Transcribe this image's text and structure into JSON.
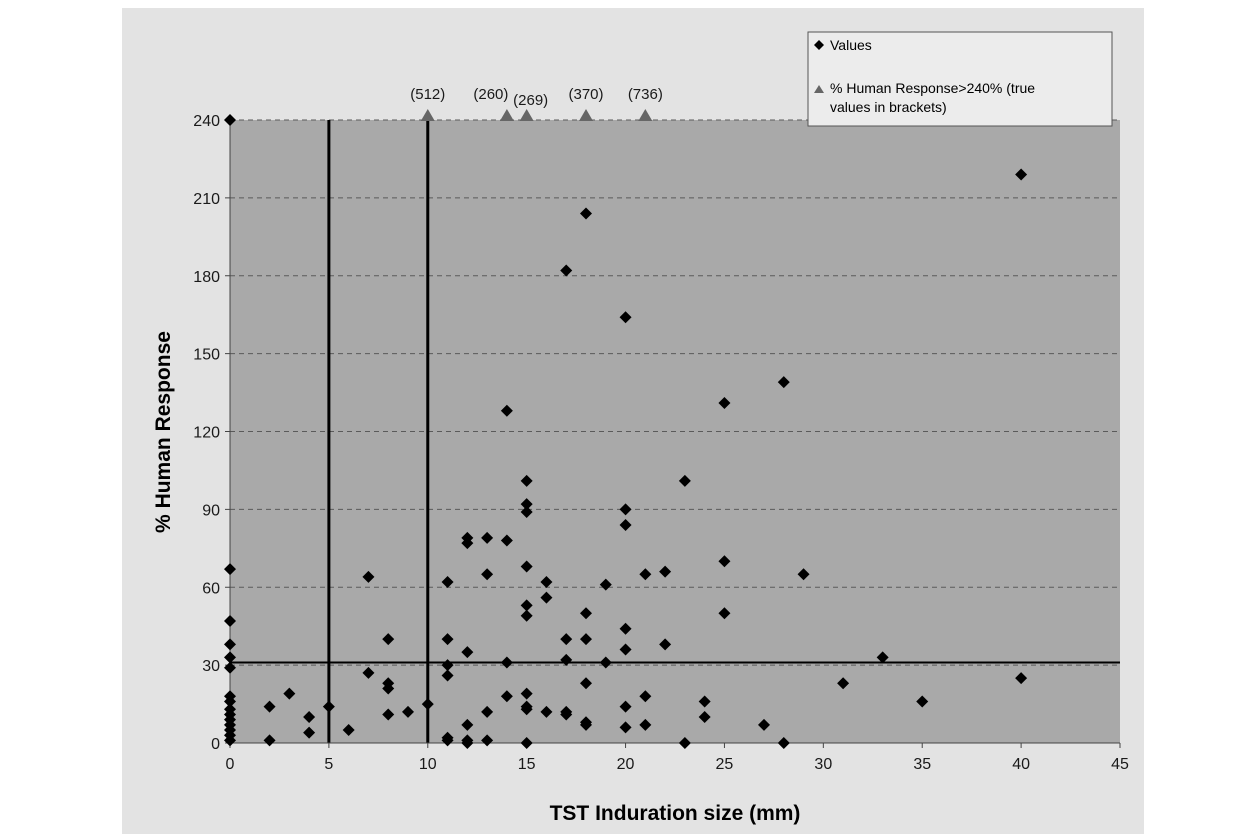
{
  "chart_data": {
    "type": "scatter",
    "xlabel": "TST Induration size (mm)",
    "ylabel": "% Human Response",
    "xlim": [
      0,
      45
    ],
    "ylim": [
      0,
      240
    ],
    "xticks": [
      0,
      5,
      10,
      15,
      20,
      25,
      30,
      35,
      40,
      45
    ],
    "yticks": [
      0,
      30,
      60,
      90,
      120,
      150,
      180,
      210,
      240
    ],
    "grid": "horizontal dashed",
    "legend_position": "top-right",
    "plot_background": "#a9a9a9",
    "reference_lines": {
      "vertical_x": [
        5,
        10
      ],
      "horizontal_y": [
        31
      ]
    },
    "series": [
      {
        "name": "Values",
        "marker": "diamond",
        "color": "#000000",
        "points": [
          [
            0,
            240
          ],
          [
            0,
            67
          ],
          [
            0,
            47
          ],
          [
            0,
            38
          ],
          [
            0,
            33
          ],
          [
            0,
            29
          ],
          [
            0,
            18
          ],
          [
            0,
            16
          ],
          [
            0,
            13
          ],
          [
            0,
            11
          ],
          [
            0,
            9
          ],
          [
            0,
            7
          ],
          [
            0,
            5
          ],
          [
            0,
            3
          ],
          [
            0,
            1
          ],
          [
            2,
            14
          ],
          [
            2,
            1
          ],
          [
            3,
            19
          ],
          [
            4,
            10
          ],
          [
            4,
            4
          ],
          [
            5,
            14
          ],
          [
            6,
            5
          ],
          [
            7,
            64
          ],
          [
            7,
            27
          ],
          [
            8,
            40
          ],
          [
            8,
            23
          ],
          [
            8,
            21
          ],
          [
            8,
            11
          ],
          [
            9,
            12
          ],
          [
            10,
            15
          ],
          [
            11,
            62
          ],
          [
            11,
            40
          ],
          [
            11,
            30
          ],
          [
            11,
            26
          ],
          [
            11,
            2
          ],
          [
            11,
            1
          ],
          [
            12,
            79
          ],
          [
            12,
            77
          ],
          [
            12,
            35
          ],
          [
            12,
            7
          ],
          [
            12,
            1
          ],
          [
            12,
            0
          ],
          [
            13,
            79
          ],
          [
            13,
            65
          ],
          [
            13,
            12
          ],
          [
            13,
            1
          ],
          [
            14,
            128
          ],
          [
            14,
            78
          ],
          [
            14,
            31
          ],
          [
            14,
            18
          ],
          [
            15,
            101
          ],
          [
            15,
            92
          ],
          [
            15,
            89
          ],
          [
            15,
            68
          ],
          [
            15,
            53
          ],
          [
            15,
            49
          ],
          [
            15,
            19
          ],
          [
            15,
            14
          ],
          [
            15,
            13
          ],
          [
            15,
            0
          ],
          [
            16,
            62
          ],
          [
            16,
            56
          ],
          [
            16,
            12
          ],
          [
            17,
            182
          ],
          [
            17,
            40
          ],
          [
            17,
            32
          ],
          [
            17,
            12
          ],
          [
            17,
            11
          ],
          [
            18,
            204
          ],
          [
            18,
            50
          ],
          [
            18,
            40
          ],
          [
            18,
            23
          ],
          [
            18,
            8
          ],
          [
            18,
            7
          ],
          [
            19,
            61
          ],
          [
            19,
            31
          ],
          [
            20,
            164
          ],
          [
            20,
            90
          ],
          [
            20,
            84
          ],
          [
            20,
            44
          ],
          [
            20,
            36
          ],
          [
            20,
            14
          ],
          [
            20,
            6
          ],
          [
            21,
            65
          ],
          [
            21,
            18
          ],
          [
            21,
            7
          ],
          [
            22,
            66
          ],
          [
            22,
            38
          ],
          [
            23,
            101
          ],
          [
            23,
            0
          ],
          [
            24,
            16
          ],
          [
            24,
            10
          ],
          [
            25,
            131
          ],
          [
            25,
            70
          ],
          [
            25,
            50
          ],
          [
            27,
            7
          ],
          [
            28,
            139
          ],
          [
            28,
            0
          ],
          [
            29,
            65
          ],
          [
            31,
            23
          ],
          [
            33,
            33
          ],
          [
            35,
            16
          ],
          [
            40,
            219
          ],
          [
            40,
            25
          ]
        ]
      },
      {
        "name": "% Human Response>240% (true values in brackets)",
        "marker": "triangle",
        "color": "#666666",
        "points": [
          {
            "x": 10,
            "y": 240,
            "label": "(512)"
          },
          {
            "x": 14,
            "y": 240,
            "label": "(260)"
          },
          {
            "x": 15,
            "y": 240,
            "label": "(269)"
          },
          {
            "x": 18,
            "y": 240,
            "label": "(370)"
          },
          {
            "x": 21,
            "y": 240,
            "label": "(736)"
          }
        ]
      }
    ]
  },
  "legend": {
    "entries": [
      {
        "label": "Values"
      },
      {
        "label_line1": "% Human Response>240% (true",
        "label_line2": "values in brackets)"
      }
    ]
  }
}
